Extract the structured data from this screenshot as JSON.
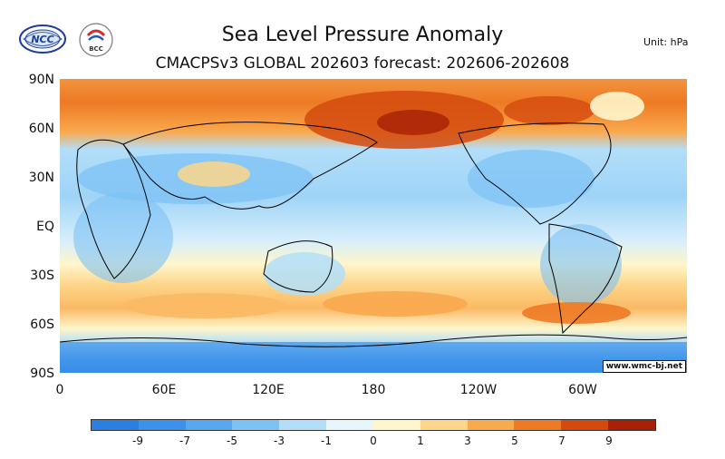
{
  "header": {
    "title": "Sea Level Pressure Anomaly",
    "subtitle": "CMACPSv3 GLOBAL 202603 forecast: 202606-202608",
    "unit": "Unit: hPa",
    "logo_left_text": "NCC",
    "logo_right_text": "BCC"
  },
  "map": {
    "lat_labels": [
      "90N",
      "60N",
      "30N",
      "EQ",
      "30S",
      "60S",
      "90S"
    ],
    "lon_labels": [
      "0",
      "60E",
      "120E",
      "180",
      "120W",
      "60W"
    ],
    "watermark": "www.wmc-bj.net"
  },
  "colorbar": {
    "colors": [
      "#2b7fe0",
      "#3c92ea",
      "#56a8f0",
      "#7dc2f5",
      "#b2def9",
      "#e6f6fb",
      "#fef6cc",
      "#fdd68a",
      "#f9a94e",
      "#ee7a25",
      "#d44a0e",
      "#a82106"
    ],
    "tick_labels": [
      "-9",
      "-7",
      "-5",
      "-3",
      "-1",
      "0",
      "1",
      "3",
      "5",
      "7",
      "9"
    ]
  }
}
